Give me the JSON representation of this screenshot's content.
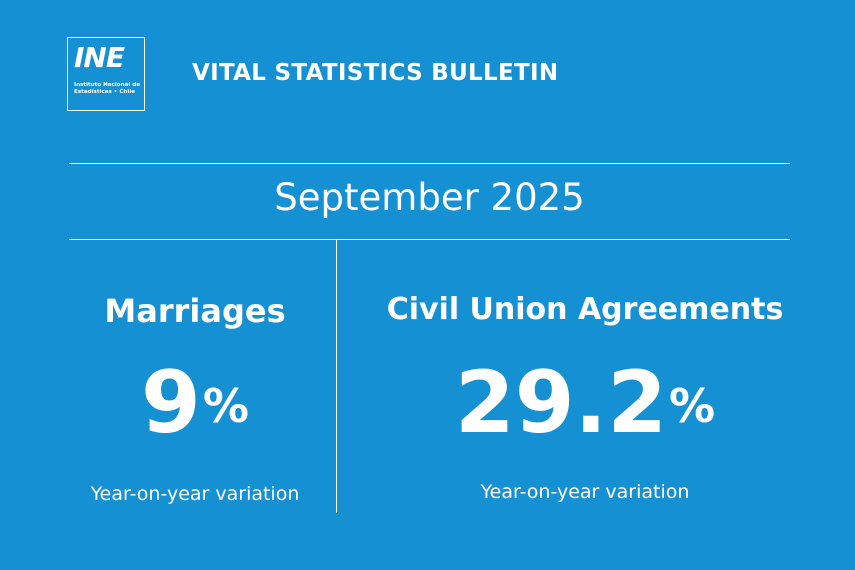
{
  "header": {
    "logo_mark": "INE",
    "logo_subtitle": "Instituto Nacional de Estadísticas • Chile",
    "title": "VITAL STATISTICS BULLETIN"
  },
  "period": "September 2025",
  "cards": [
    {
      "title": "Marriages",
      "value": "9",
      "unit": "%",
      "caption": "Year-on-year variation"
    },
    {
      "title": "Civil Union Agreements",
      "value": "29.2",
      "unit": "%",
      "caption": "Year-on-year variation"
    }
  ],
  "colors": {
    "background": "#1591d3",
    "foreground": "#ffffff"
  }
}
